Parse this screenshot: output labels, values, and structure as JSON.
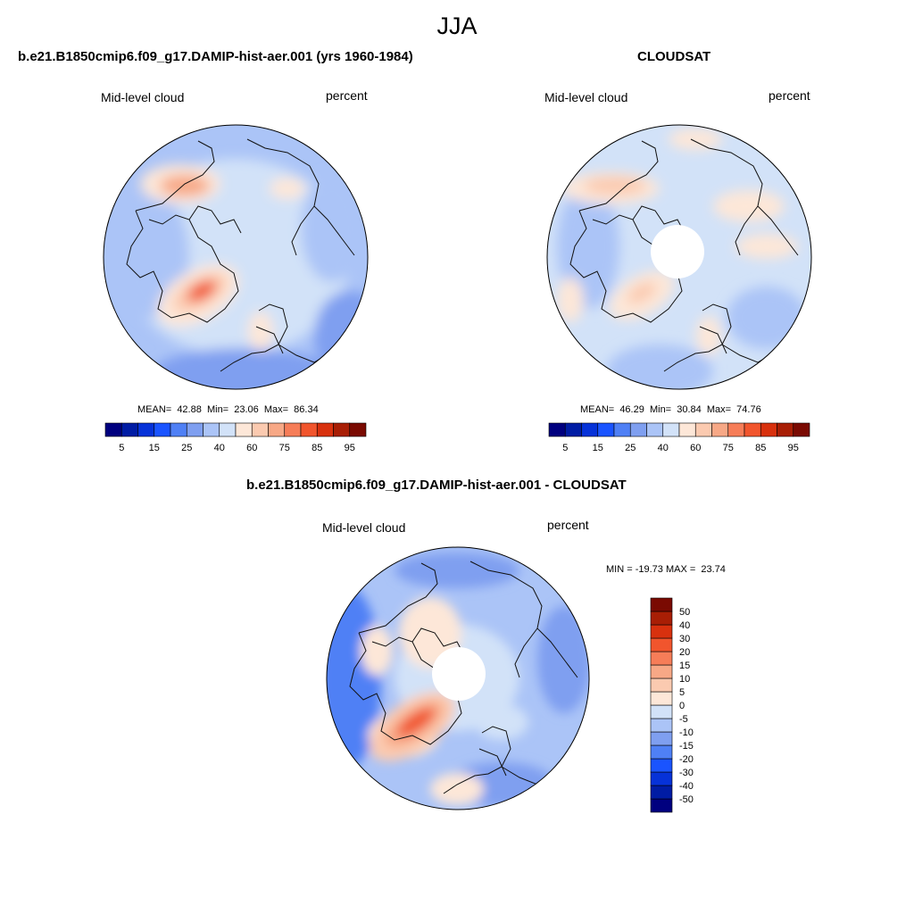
{
  "figure": {
    "title": "JJA"
  },
  "panels": [
    {
      "title": "b.e21.B1850cmip6.f09_g17.DAMIP-hist-aer.001 (yrs 1960-1984)",
      "left_label": "Mid-level cloud",
      "right_label": "percent",
      "stats": "MEAN=  42.88  Min=  23.06  Max=  86.34"
    },
    {
      "title": "CLOUDSAT",
      "left_label": "Mid-level cloud",
      "right_label": "percent",
      "stats": "MEAN=  46.29  Min=  30.84  Max=  74.76"
    },
    {
      "title": "b.e21.B1850cmip6.f09_g17.DAMIP-hist-aer.001 - CLOUDSAT",
      "left_label": "Mid-level cloud",
      "right_label": "percent",
      "stats": "MIN = -19.73 MAX =  23.74"
    }
  ],
  "colorbar_abs": {
    "colors": [
      "#00007f",
      "#001ca4",
      "#0632d8",
      "#1a54ff",
      "#4f80f5",
      "#7f9ff0",
      "#abc4f7",
      "#d2e2f8",
      "#fde7d8",
      "#fbcab0",
      "#f7a886",
      "#f67d58",
      "#f1552d",
      "#d8310e",
      "#a81e05",
      "#7a0a02"
    ],
    "tick_labels": [
      "5",
      "15",
      "25",
      "40",
      "60",
      "75",
      "85",
      "95"
    ]
  },
  "colorbar_diff": {
    "colors": [
      "#00007f",
      "#001ca4",
      "#0632d8",
      "#1a54ff",
      "#4f80f5",
      "#7f9ff0",
      "#abc4f7",
      "#d2e2f8",
      "#fde7d8",
      "#fbcab0",
      "#f7a886",
      "#f67d58",
      "#f1552d",
      "#d8310e",
      "#a81e05",
      "#7a0a02"
    ],
    "tick_labels": [
      "-50",
      "-40",
      "-30",
      "-20",
      "-15",
      "-10",
      "-5",
      "0",
      "5",
      "10",
      "15",
      "20",
      "30",
      "40",
      "50"
    ]
  }
}
